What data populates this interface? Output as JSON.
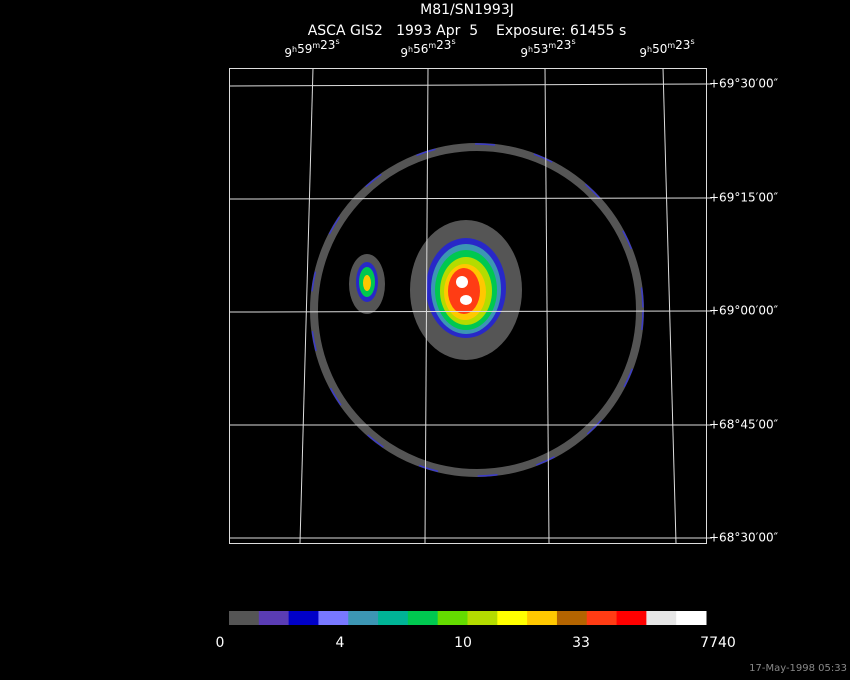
{
  "header": {
    "title": "M81/SN1993J",
    "subtitle": "ASCA GIS2   1993 Apr  5    Exposure: 61455 s"
  },
  "ra_units": [
    "h",
    "m",
    "s"
  ],
  "ra_labels": [
    [
      "9",
      "59",
      "23"
    ],
    [
      "9",
      "56",
      "23"
    ],
    [
      "9",
      "53",
      "23"
    ],
    [
      "9",
      "50",
      "23"
    ]
  ],
  "dec_labels": [
    "+69°30′00″",
    "+69°15′00″",
    "+69°00′00″",
    "+68°45′00″",
    "+68°30′00″"
  ],
  "colorbar": {
    "colors": [
      "#555555",
      "#5a3cb4",
      "#0000c8",
      "#7878ff",
      "#3c96b4",
      "#00b496",
      "#00c850",
      "#64dc00",
      "#b4dc00",
      "#ffff00",
      "#ffc800",
      "#b46400",
      "#ff3c14",
      "#ff0000",
      "#e6e6e6",
      "#ffffff"
    ],
    "labels": [
      0,
      4,
      10,
      33,
      7740
    ]
  },
  "timestamp": "17-May-1998 05:33"
}
